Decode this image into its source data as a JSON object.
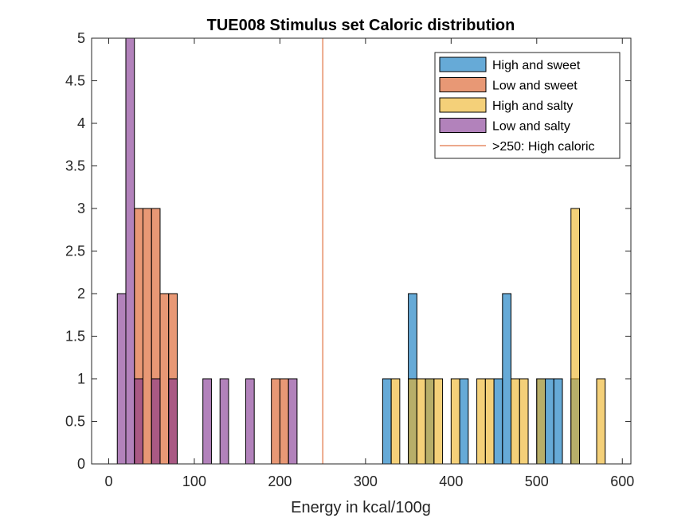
{
  "chart_data": {
    "type": "bar",
    "title": "TUE008 Stimulus set Caloric distribution",
    "xlabel": "Energy in kcal/100g",
    "ylabel": "",
    "xlim": [
      -20,
      610
    ],
    "ylim": [
      0,
      5
    ],
    "xticks": [
      0,
      100,
      200,
      300,
      400,
      500,
      600
    ],
    "yticks": [
      0,
      0.5,
      1,
      1.5,
      2,
      2.5,
      3,
      3.5,
      4,
      4.5,
      5
    ],
    "bin_width": 10,
    "face_alpha": 0.6,
    "legend_position": "top-right",
    "series": [
      {
        "name": "High and sweet",
        "color": "#0072BD",
        "bins": [
          [
            320,
            1
          ],
          [
            350,
            2
          ],
          [
            370,
            1
          ],
          [
            410,
            1
          ],
          [
            450,
            1
          ],
          [
            460,
            2
          ],
          [
            500,
            1
          ],
          [
            510,
            1
          ],
          [
            520,
            1
          ],
          [
            540,
            1
          ]
        ]
      },
      {
        "name": "Low and sweet",
        "color": "#D95319",
        "bins": [
          [
            30,
            3
          ],
          [
            40,
            3
          ],
          [
            50,
            3
          ],
          [
            60,
            2
          ],
          [
            70,
            2
          ],
          [
            190,
            1
          ],
          [
            200,
            1
          ]
        ]
      },
      {
        "name": "High and salty",
        "color": "#EDB120",
        "bins": [
          [
            330,
            1
          ],
          [
            350,
            1
          ],
          [
            360,
            1
          ],
          [
            370,
            1
          ],
          [
            380,
            1
          ],
          [
            400,
            1
          ],
          [
            430,
            1
          ],
          [
            440,
            1
          ],
          [
            470,
            1
          ],
          [
            480,
            1
          ],
          [
            500,
            1
          ],
          [
            540,
            3
          ],
          [
            570,
            1
          ]
        ]
      },
      {
        "name": "Low and salty",
        "color": "#7E2F8E",
        "bins": [
          [
            10,
            2
          ],
          [
            20,
            5
          ],
          [
            30,
            1
          ],
          [
            50,
            1
          ],
          [
            70,
            1
          ],
          [
            110,
            1
          ],
          [
            130,
            1
          ],
          [
            160,
            1
          ],
          [
            210,
            1
          ]
        ]
      }
    ],
    "reference_line": {
      "label": ">250: High caloric",
      "x": 250,
      "color": "#D95319"
    }
  }
}
